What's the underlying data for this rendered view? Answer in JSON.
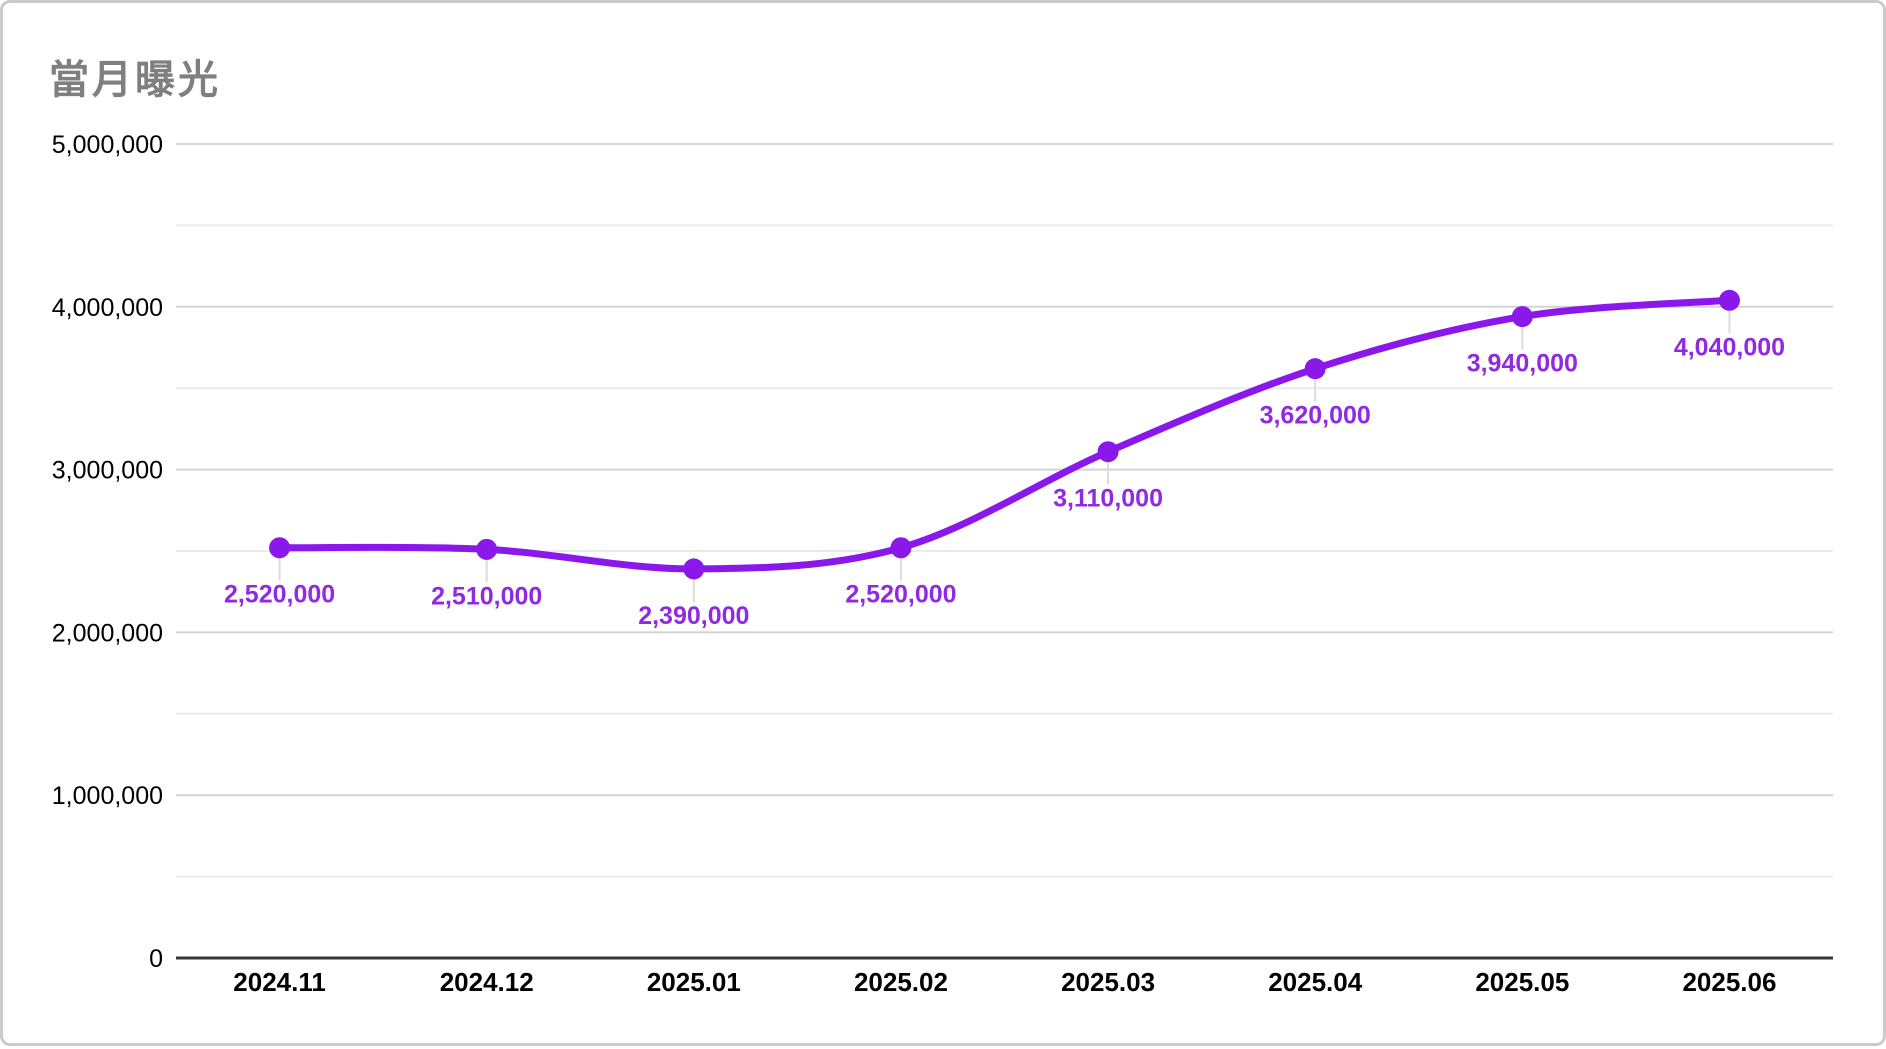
{
  "chart_data": {
    "type": "line",
    "title": "當月曝光",
    "categories": [
      "2024.11",
      "2024.12",
      "2025.01",
      "2025.02",
      "2025.03",
      "2025.04",
      "2025.05",
      "2025.06"
    ],
    "series": [
      {
        "name": "當月曝光",
        "values": [
          2520000,
          2510000,
          2390000,
          2520000,
          3110000,
          3620000,
          3940000,
          4040000
        ],
        "value_labels": [
          "2,520,000",
          "2,510,000",
          "2,390,000",
          "2,520,000",
          "3,110,000",
          "3,620,000",
          "3,940,000",
          "4,040,000"
        ]
      }
    ],
    "xlabel": "",
    "ylabel": "",
    "ylim": [
      0,
      5000000
    ],
    "y_major_ticks": [
      0,
      1000000,
      2000000,
      3000000,
      4000000,
      5000000
    ],
    "y_major_tick_labels": [
      "0",
      "1,000,000",
      "2,000,000",
      "3,000,000",
      "4,000,000",
      "5,000,000"
    ],
    "y_minor_ticks": [
      500000,
      1500000,
      2500000,
      3500000,
      4500000
    ],
    "grid": "horizontal, major + minor, on",
    "legend_position": "none",
    "line_style": "smooth",
    "colors": {
      "line": "#8a18ea",
      "point": "#8a18ea",
      "data_label": "#9129e2",
      "title": "#7f7f7f",
      "axis_text": "#000000",
      "grid_major": "#d4d4d4",
      "grid_minor": "#ebebeb",
      "axis_line": "#383838",
      "leader_line": "#dcdcdc",
      "background": "#ffffff",
      "border": "#cbcbcb"
    }
  }
}
